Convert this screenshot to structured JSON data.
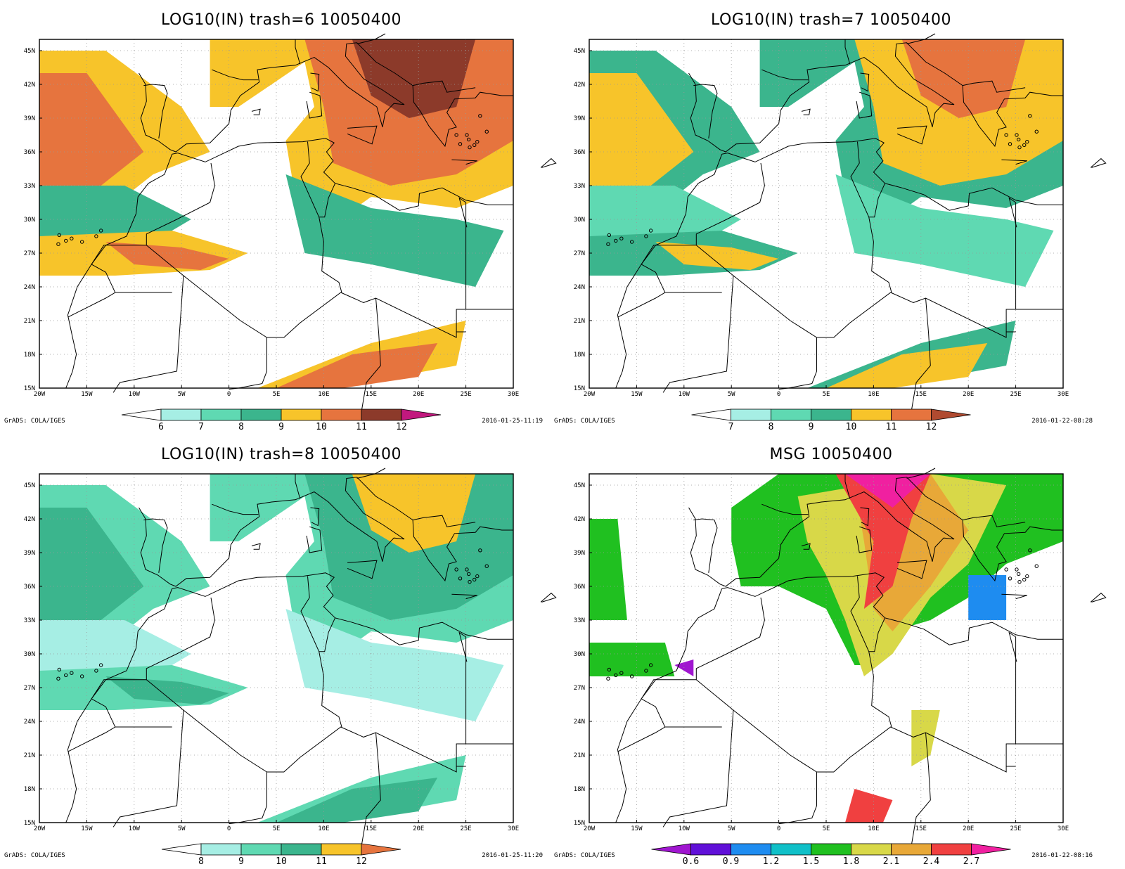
{
  "panels": [
    {
      "title": "LOG10(IN) trash=6 10050400",
      "credit": "GrADS: COLA/IGES",
      "timestamp": "2016-01-25-11:19",
      "colorbar": {
        "colors": [
          "#ffffff",
          "#a6eee4",
          "#5fd9b2",
          "#3bb58d",
          "#f7c42a",
          "#e6743e",
          "#8c3a2a",
          "#c2187e"
        ],
        "labels": [
          "6",
          "7",
          "8",
          "9",
          "10",
          "11",
          "12"
        ]
      }
    },
    {
      "title": "LOG10(IN) trash=7 10050400",
      "credit": "GrADS: COLA/IGES",
      "timestamp": "2016-01-22-08:28",
      "colorbar": {
        "colors": [
          "#ffffff",
          "#a6eee4",
          "#5fd9b2",
          "#3bb58d",
          "#f7c42a",
          "#e6743e",
          "#b04a30"
        ],
        "labels": [
          "7",
          "8",
          "9",
          "10",
          "11",
          "12"
        ]
      }
    },
    {
      "title": "LOG10(IN) trash=8 10050400",
      "credit": "GrADS: COLA/IGES",
      "timestamp": "2016-01-25-11:20",
      "colorbar": {
        "colors": [
          "#ffffff",
          "#a6eee4",
          "#5fd9b2",
          "#3bb58d",
          "#f7c42a",
          "#e6743e"
        ],
        "labels": [
          "8",
          "9",
          "10",
          "11",
          "12"
        ]
      }
    },
    {
      "title": "MSG 10050400",
      "credit": "GrADS: COLA/IGES",
      "timestamp": "2016-01-22-08:16",
      "colorbar": {
        "colors": [
          "#a016d0",
          "#6010d8",
          "#1e8cf0",
          "#10c0c8",
          "#20c020",
          "#d8d848",
          "#e8a838",
          "#f04040",
          "#f020a0"
        ],
        "labels": [
          "0.6",
          "0.9",
          "1.2",
          "1.5",
          "1.8",
          "2.1",
          "2.4",
          "2.7"
        ]
      }
    }
  ],
  "axes": {
    "x_labels": [
      "20W",
      "15W",
      "10W",
      "5W",
      "0",
      "5E",
      "10E",
      "15E",
      "20E",
      "25E",
      "30E"
    ],
    "y_labels": [
      "15N",
      "18N",
      "21N",
      "24N",
      "27N",
      "30N",
      "33N",
      "36N",
      "39N",
      "42N",
      "45N"
    ],
    "lon_range": [
      -20,
      30
    ],
    "lat_range": [
      15,
      46
    ]
  }
}
